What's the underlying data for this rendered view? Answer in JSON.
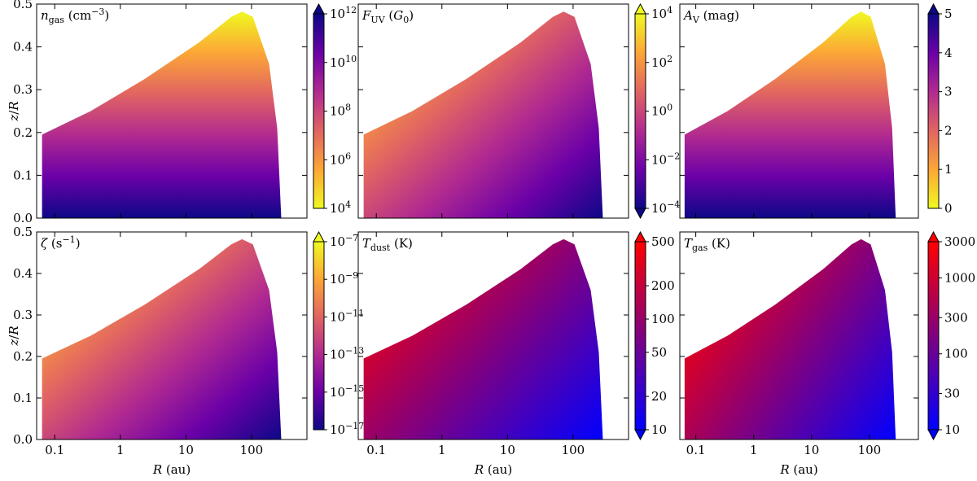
{
  "axes": {
    "xlabel": [
      {
        "text": "R",
        "style": "italic"
      },
      {
        "text": " (au)",
        "style": "normal"
      }
    ],
    "ylabel": [
      {
        "text": "z",
        "style": "italic"
      },
      {
        "text": "/",
        "style": "normal"
      },
      {
        "text": "R",
        "style": "italic"
      }
    ],
    "xscale": "log",
    "xlim": [
      0.053,
      700
    ],
    "xticks": [
      0.1,
      1,
      10,
      100
    ],
    "ylim": [
      0,
      0.5
    ],
    "yticks": [
      {
        "value": 0,
        "label": "0.0"
      },
      0.1,
      0.2,
      0.3,
      0.4,
      0.5
    ]
  },
  "chart_data": [
    {
      "type": "contour",
      "title": [
        {
          "text": "n",
          "style": "italic"
        },
        {
          "text": "gas",
          "style": "sub"
        },
        {
          "text": " (cm",
          "style": "normal"
        },
        {
          "text": "−3",
          "style": "sup"
        },
        {
          "text": ")",
          "style": "normal"
        }
      ],
      "log": true,
      "clim": [
        10000,
        1000000000000
      ],
      "extend": "max",
      "colormap": [
        "#f0f921",
        "#fca636",
        "#e16462",
        "#b12a90",
        "#6a00a8",
        "#0d0887"
      ],
      "cticks": [
        {
          "value": 10000,
          "label": "10",
          "sup": "4"
        },
        {
          "value": 1000000,
          "label": "10",
          "sup": "6"
        },
        {
          "value": 100000000,
          "label": "10",
          "sup": "8"
        },
        {
          "value": 10000000000,
          "label": "10",
          "sup": "10"
        },
        {
          "value": 1000000000000,
          "label": "10",
          "sup": "12"
        }
      ]
    },
    {
      "type": "contour",
      "title": [
        {
          "text": "F",
          "style": "italic"
        },
        {
          "text": "UV",
          "style": "sub"
        },
        {
          "text": " (",
          "style": "normal"
        },
        {
          "text": "G",
          "style": "italic"
        },
        {
          "text": "0",
          "style": "sub"
        },
        {
          "text": ")",
          "style": "normal"
        }
      ],
      "log": true,
      "clim": [
        0.0001,
        10000
      ],
      "extend": "both",
      "colormap": [
        "#0d0887",
        "#6a00a8",
        "#b12a90",
        "#e16462",
        "#fca636",
        "#f0f921"
      ],
      "cticks": [
        {
          "value": 0.0001,
          "label": "10",
          "sup": "−4"
        },
        {
          "value": 0.01,
          "label": "10",
          "sup": "−2"
        },
        {
          "value": 1,
          "label": "10",
          "sup": "0"
        },
        {
          "value": 100,
          "label": "10",
          "sup": "2"
        },
        {
          "value": 10000,
          "label": "10",
          "sup": "4"
        }
      ]
    },
    {
      "type": "contour",
      "title": [
        {
          "text": "A",
          "style": "italic"
        },
        {
          "text": "V",
          "style": "sub"
        },
        {
          "text": " (mag)",
          "style": "normal"
        }
      ],
      "log": false,
      "clim": [
        0,
        5
      ],
      "extend": "max",
      "colormap": [
        "#f0f921",
        "#fca636",
        "#e16462",
        "#b12a90",
        "#6a00a8",
        "#0d0887"
      ],
      "cticks": [
        0,
        1,
        2,
        3,
        4,
        5
      ]
    },
    {
      "type": "contour",
      "title": [
        {
          "text": "ζ",
          "style": "italic"
        },
        {
          "text": " (s",
          "style": "normal"
        },
        {
          "text": "−1",
          "style": "sup"
        },
        {
          "text": ")",
          "style": "normal"
        }
      ],
      "log": true,
      "clim": [
        1e-17,
        1e-07
      ],
      "extend": "max",
      "colormap": [
        "#0d0887",
        "#6a00a8",
        "#b12a90",
        "#e16462",
        "#fca636",
        "#f0f921"
      ],
      "cticks": [
        {
          "value": 1e-17,
          "label": "10",
          "sup": "−17"
        },
        {
          "value": 1e-15,
          "label": "10",
          "sup": "−15"
        },
        {
          "value": 1e-13,
          "label": "10",
          "sup": "−13"
        },
        {
          "value": 1e-11,
          "label": "10",
          "sup": "−11"
        },
        {
          "value": 1e-09,
          "label": "10",
          "sup": "−9"
        },
        {
          "value": 1e-07,
          "label": "10",
          "sup": "−7"
        }
      ]
    },
    {
      "type": "contour",
      "title": [
        {
          "text": "T",
          "style": "italic"
        },
        {
          "text": "dust",
          "style": "sub"
        },
        {
          "text": " (K)",
          "style": "normal"
        }
      ],
      "log": true,
      "clim": [
        10,
        500
      ],
      "extend": "both",
      "colormap": [
        "#0000ff",
        "#4000c0",
        "#800080",
        "#c00040",
        "#ff0000"
      ],
      "cticks": [
        10,
        20,
        50,
        100,
        200,
        500
      ]
    },
    {
      "type": "contour",
      "title": [
        {
          "text": "T",
          "style": "italic"
        },
        {
          "text": "gas",
          "style": "sub"
        },
        {
          "text": " (K)",
          "style": "normal"
        }
      ],
      "log": true,
      "clim": [
        10,
        3000
      ],
      "extend": "both",
      "colormap": [
        "#0000ff",
        "#4000c0",
        "#800080",
        "#c00040",
        "#ff0000"
      ],
      "cticks": [
        10,
        30,
        100,
        300,
        1000,
        3000
      ]
    }
  ]
}
